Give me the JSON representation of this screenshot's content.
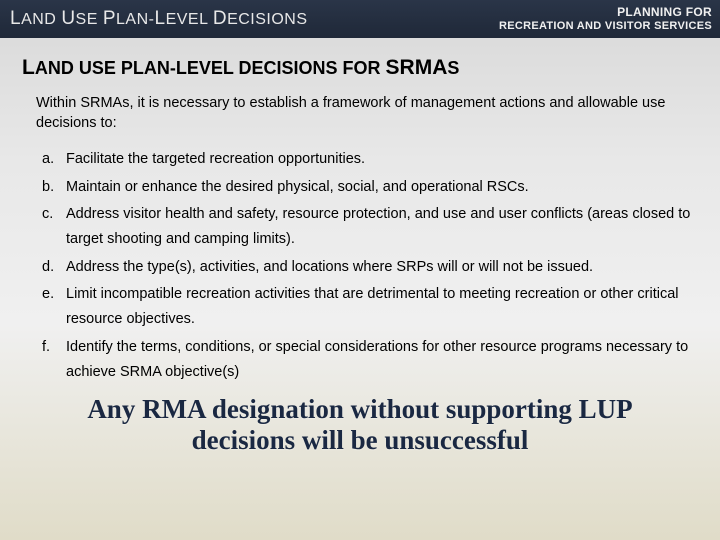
{
  "header": {
    "left_html": "<span class='caps'>L</span>AND <span class='caps'>U</span>SE <span class='caps'>P</span>LAN-<span class='caps'>L</span>EVEL <span class='caps'>D</span>ECISIONS",
    "right_line1": "PLANNING FOR",
    "right_line2": "RECREATION AND VISITOR SERVICES"
  },
  "section_title_html": "<span class='big'>L</span>AND USE PLAN-LEVEL DECISIONS FOR <span class='big'>SRMA</span>S",
  "intro": "Within SRMAs, it is necessary to establish a framework of management actions and allowable use decisions to:",
  "items": [
    {
      "marker": "a.",
      "text": "Facilitate the targeted recreation opportunities."
    },
    {
      "marker": "b.",
      "text": "Maintain or enhance the desired physical, social, and operational RSCs."
    },
    {
      "marker": "c.",
      "text": "Address visitor health and safety, resource protection, and use and user conflicts (areas closed to target shooting and camping limits)."
    },
    {
      "marker": "d.",
      "text": "Address the type(s), activities, and locations where SRPs will or will not be issued."
    },
    {
      "marker": "e.",
      "text": "Limit incompatible recreation activities that are detrimental to meeting recreation or other critical resource objectives."
    },
    {
      "marker": "f.",
      "text": "Identify the terms, conditions, or special considerations for other resource programs necessary to achieve SRMA objective(s)"
    }
  ],
  "footer": "Any RMA designation without supporting LUP decisions will be unsuccessful"
}
